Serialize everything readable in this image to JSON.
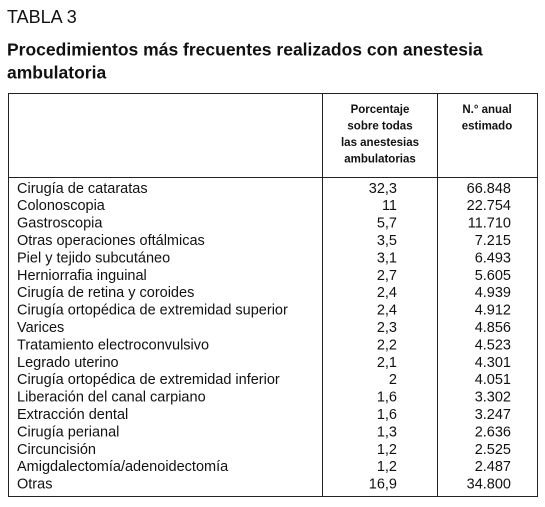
{
  "header": {
    "label": "TABLA 3",
    "title": [
      "Procedimientos más frecuentes realizados con anestesia",
      "ambulatoria"
    ]
  },
  "table": {
    "columns": [
      [],
      [
        "Porcentaje",
        "sobre todas",
        "las anestesias",
        "ambulatorias"
      ],
      [
        "N.° anual",
        "estimado"
      ]
    ],
    "rows": [
      [
        "Cirugía de cataratas",
        "32,3",
        "66.848"
      ],
      [
        "Colonoscopia",
        "11",
        "22.754"
      ],
      [
        "Gastroscopia",
        "5,7",
        "11.710"
      ],
      [
        "Otras operaciones oftálmicas",
        "3,5",
        "7.215"
      ],
      [
        "Piel y tejido subcutáneo",
        "3,1",
        "6.493"
      ],
      [
        "Herniorrafia inguinal",
        "2,7",
        "5.605"
      ],
      [
        "Cirugía de retina y coroides",
        "2,4",
        "4.939"
      ],
      [
        "Cirugía ortopédica de extremidad superior",
        "2,4",
        "4.912"
      ],
      [
        "Varices",
        "2,3",
        "4.856"
      ],
      [
        "Tratamiento electroconvulsivo",
        "2,2",
        "4.523"
      ],
      [
        "Legrado uterino",
        "2,1",
        "4.301"
      ],
      [
        "Cirugía ortopédica de extremidad inferior",
        "2",
        "4.051"
      ],
      [
        "Liberación del canal carpiano",
        "1,6",
        "3.302"
      ],
      [
        "Extracción dental",
        "1,6",
        "3.247"
      ],
      [
        "Cirugía perianal",
        "1,3",
        "2.636"
      ],
      [
        "Circuncisión",
        "1,2",
        "2.525"
      ],
      [
        "Amigdalectomía/adenoidectomía",
        "1,2",
        "2.487"
      ],
      [
        "Otras",
        "16,9",
        "34.800"
      ]
    ]
  }
}
